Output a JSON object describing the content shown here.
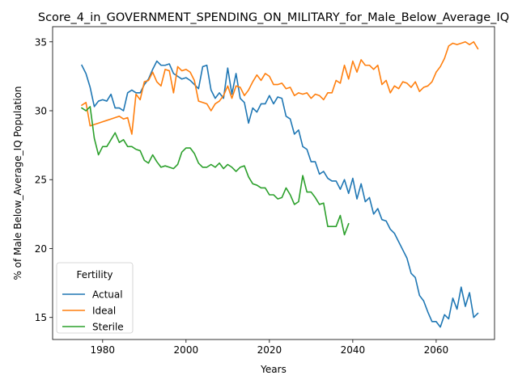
{
  "chart_data": {
    "type": "line",
    "title": "Score_4_in_GOVERNMENT_SPENDING_ON_MILITARY_for_Male_Below_Average_IQ",
    "xlabel": "Years",
    "ylabel": "% of Male Below_Average_IQ Population",
    "xlim": [
      1968,
      2074
    ],
    "ylim": [
      13.4,
      36.1
    ],
    "xticks": [
      1980,
      2000,
      2020,
      2040,
      2060
    ],
    "yticks": [
      15,
      20,
      25,
      30,
      35
    ],
    "xtick_labels": [
      "1980",
      "2000",
      "2020",
      "2040",
      "2060"
    ],
    "ytick_labels": [
      "15",
      "20",
      "25",
      "30",
      "35"
    ],
    "grid": false,
    "legend": {
      "title": "Fertility",
      "position": "lower-left"
    },
    "series": [
      {
        "name": "Actual",
        "color": "#1f77b4",
        "x": [
          1975,
          1976,
          1977,
          1978,
          1979,
          1980,
          1981,
          1982,
          1983,
          1984,
          1985,
          1986,
          1987,
          1988,
          1989,
          1990,
          1991,
          1992,
          1993,
          1994,
          1995,
          1996,
          1997,
          1998,
          1999,
          2000,
          2001,
          2002,
          2003,
          2004,
          2005,
          2006,
          2007,
          2008,
          2009,
          2010,
          2011,
          2012,
          2013,
          2014,
          2015,
          2016,
          2017,
          2018,
          2019,
          2020,
          2021,
          2022,
          2023,
          2024,
          2025,
          2026,
          2027,
          2028,
          2029,
          2030,
          2031,
          2032,
          2033,
          2034,
          2035,
          2036,
          2037,
          2038,
          2039,
          2040,
          2041,
          2042,
          2043,
          2044,
          2045,
          2046,
          2047,
          2048,
          2049,
          2050,
          2051,
          2052,
          2053,
          2054,
          2055,
          2056,
          2057,
          2058,
          2059,
          2060,
          2061,
          2062,
          2063,
          2064,
          2065,
          2066,
          2067,
          2068,
          2069,
          2070
        ],
        "values": [
          33.3,
          32.7,
          31.7,
          30.3,
          30.7,
          30.8,
          30.7,
          31.2,
          30.2,
          30.2,
          30.0,
          31.3,
          31.5,
          31.3,
          31.3,
          31.9,
          32.3,
          33.0,
          33.6,
          33.3,
          33.3,
          33.4,
          32.7,
          32.5,
          32.3,
          32.4,
          32.2,
          31.9,
          31.6,
          33.2,
          33.3,
          31.5,
          30.9,
          31.3,
          30.9,
          33.1,
          31.2,
          32.7,
          30.9,
          30.6,
          29.1,
          30.2,
          29.9,
          30.5,
          30.5,
          31.1,
          30.5,
          31.0,
          30.9,
          29.6,
          29.4,
          28.3,
          28.6,
          27.4,
          27.2,
          26.3,
          26.3,
          25.4,
          25.6,
          25.1,
          24.9,
          24.9,
          24.3,
          25.0,
          24.0,
          25.1,
          23.6,
          24.7,
          23.4,
          23.7,
          22.5,
          22.9,
          22.1,
          22.0,
          21.4,
          21.1,
          20.5,
          19.9,
          19.3,
          18.2,
          17.9,
          16.6,
          16.2,
          15.4,
          14.7,
          14.7,
          14.3,
          15.2,
          14.9,
          16.4,
          15.6,
          17.2,
          15.8,
          16.8,
          15.0,
          15.3
        ]
      },
      {
        "name": "Ideal",
        "color": "#ff7f0e",
        "x": [
          1975,
          1976,
          1977,
          1978,
          1979,
          1980,
          1981,
          1982,
          1983,
          1984,
          1985,
          1986,
          1987,
          1988,
          1989,
          1990,
          1991,
          1992,
          1993,
          1994,
          1995,
          1996,
          1997,
          1998,
          1999,
          2000,
          2001,
          2002,
          2003,
          2004,
          2005,
          2006,
          2007,
          2008,
          2009,
          2010,
          2011,
          2012,
          2013,
          2014,
          2015,
          2016,
          2017,
          2018,
          2019,
          2020,
          2021,
          2022,
          2023,
          2024,
          2025,
          2026,
          2027,
          2028,
          2029,
          2030,
          2031,
          2032,
          2033,
          2034,
          2035,
          2036,
          2037,
          2038,
          2039,
          2040,
          2041,
          2042,
          2043,
          2044,
          2045,
          2046,
          2047,
          2048,
          2049,
          2050,
          2051,
          2052,
          2053,
          2054,
          2055,
          2056,
          2057,
          2058,
          2059,
          2060,
          2061,
          2062,
          2063,
          2064,
          2065,
          2066,
          2067,
          2068,
          2069,
          2070
        ],
        "values": [
          30.4,
          30.6,
          28.9,
          29.0,
          29.1,
          29.2,
          29.3,
          29.4,
          29.5,
          29.6,
          29.4,
          29.5,
          28.3,
          31.2,
          30.8,
          32.1,
          32.2,
          32.8,
          32.1,
          31.8,
          33.0,
          32.9,
          31.3,
          33.2,
          32.9,
          33.0,
          32.8,
          32.2,
          30.7,
          30.6,
          30.5,
          30.0,
          30.5,
          30.7,
          31.1,
          31.8,
          30.9,
          31.8,
          31.7,
          31.1,
          31.5,
          32.1,
          32.6,
          32.2,
          32.7,
          32.5,
          31.9,
          31.9,
          32.0,
          31.6,
          31.7,
          31.1,
          31.3,
          31.2,
          31.3,
          30.9,
          31.2,
          31.1,
          30.8,
          31.3,
          31.3,
          32.2,
          32.0,
          33.3,
          32.3,
          33.6,
          32.8,
          33.7,
          33.3,
          33.3,
          33.0,
          33.3,
          31.9,
          32.2,
          31.3,
          31.8,
          31.6,
          32.1,
          32.0,
          31.7,
          32.1,
          31.4,
          31.7,
          31.8,
          32.1,
          32.8,
          33.2,
          33.8,
          34.7,
          34.9,
          34.8,
          34.9,
          35.0,
          34.8,
          35.0,
          34.5
        ]
      },
      {
        "name": "Sterile",
        "color": "#2ca02c",
        "x": [
          1975,
          1976,
          1977,
          1978,
          1979,
          1980,
          1981,
          1982,
          1983,
          1984,
          1985,
          1986,
          1987,
          1988,
          1989,
          1990,
          1991,
          1992,
          1993,
          1994,
          1995,
          1996,
          1997,
          1998,
          1999,
          2000,
          2001,
          2002,
          2003,
          2004,
          2005,
          2006,
          2007,
          2008,
          2009,
          2010,
          2011,
          2012,
          2013,
          2014,
          2015,
          2016,
          2017,
          2018,
          2019,
          2020,
          2021,
          2022,
          2023,
          2024,
          2025,
          2026,
          2027,
          2028,
          2029,
          2030,
          2031,
          2032,
          2033,
          2034,
          2035,
          2036,
          2037,
          2038,
          2039
        ],
        "values": [
          30.2,
          30.0,
          30.3,
          28.0,
          26.8,
          27.4,
          27.4,
          27.9,
          28.4,
          27.7,
          27.9,
          27.4,
          27.4,
          27.2,
          27.1,
          26.4,
          26.2,
          26.8,
          26.3,
          25.9,
          26.0,
          25.9,
          25.8,
          26.1,
          27.0,
          27.3,
          27.3,
          26.9,
          26.2,
          25.9,
          25.9,
          26.1,
          25.9,
          26.2,
          25.8,
          26.1,
          25.9,
          25.6,
          25.9,
          26.0,
          25.2,
          24.7,
          24.6,
          24.4,
          24.4,
          23.9,
          23.9,
          23.6,
          23.7,
          24.4,
          23.9,
          23.2,
          23.4,
          25.3,
          24.1,
          24.1,
          23.7,
          23.2,
          23.3,
          21.6,
          21.6,
          21.6,
          22.4,
          21.0,
          21.8
        ]
      }
    ]
  }
}
